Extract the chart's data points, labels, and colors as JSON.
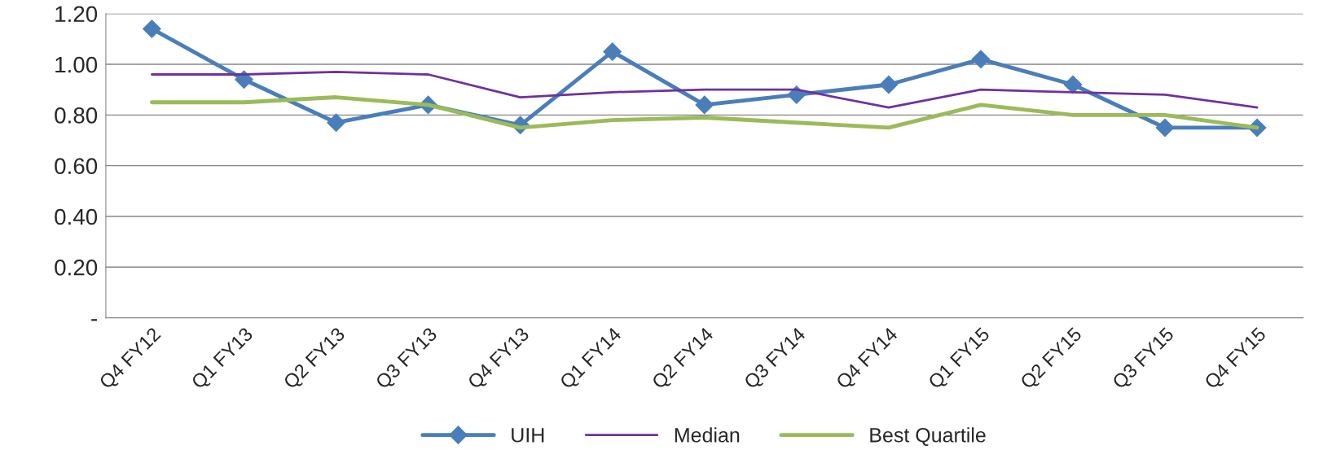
{
  "chart_data": {
    "type": "line",
    "categories": [
      "Q4 FY12",
      "Q1 FY13",
      "Q2 FY13",
      "Q3 FY13",
      "Q4 FY13",
      "Q1 FY14",
      "Q2 FY14",
      "Q3 FY14",
      "Q4 FY14",
      "Q1 FY15",
      "Q2 FY15",
      "Q3 FY15",
      "Q4 FY15"
    ],
    "series": [
      {
        "name": "UIH",
        "color": "#4a7ebb",
        "marker": "diamond",
        "values": [
          1.14,
          0.94,
          0.77,
          0.84,
          0.76,
          1.05,
          0.84,
          0.88,
          0.92,
          1.02,
          0.92,
          0.75,
          0.75
        ]
      },
      {
        "name": "Median",
        "color": "#7030a0",
        "marker": "none",
        "values": [
          0.96,
          0.96,
          0.97,
          0.96,
          0.87,
          0.89,
          0.9,
          0.9,
          0.83,
          0.9,
          0.89,
          0.88,
          0.83
        ]
      },
      {
        "name": "Best Quartile",
        "color": "#9bbb59",
        "marker": "none",
        "values": [
          0.85,
          0.85,
          0.87,
          0.84,
          0.75,
          0.78,
          0.79,
          0.77,
          0.75,
          0.84,
          0.8,
          0.8,
          0.75
        ]
      }
    ],
    "ylim": [
      0,
      1.2
    ],
    "yticks": [
      {
        "value": 0,
        "label": "-"
      },
      {
        "value": 0.2,
        "label": "0.20"
      },
      {
        "value": 0.4,
        "label": "0.40"
      },
      {
        "value": 0.6,
        "label": "0.60"
      },
      {
        "value": 0.8,
        "label": "0.80"
      },
      {
        "value": 1.0,
        "label": "1.00"
      },
      {
        "value": 1.2,
        "label": "1.20"
      }
    ],
    "grid": "y",
    "legend": "bottom"
  }
}
